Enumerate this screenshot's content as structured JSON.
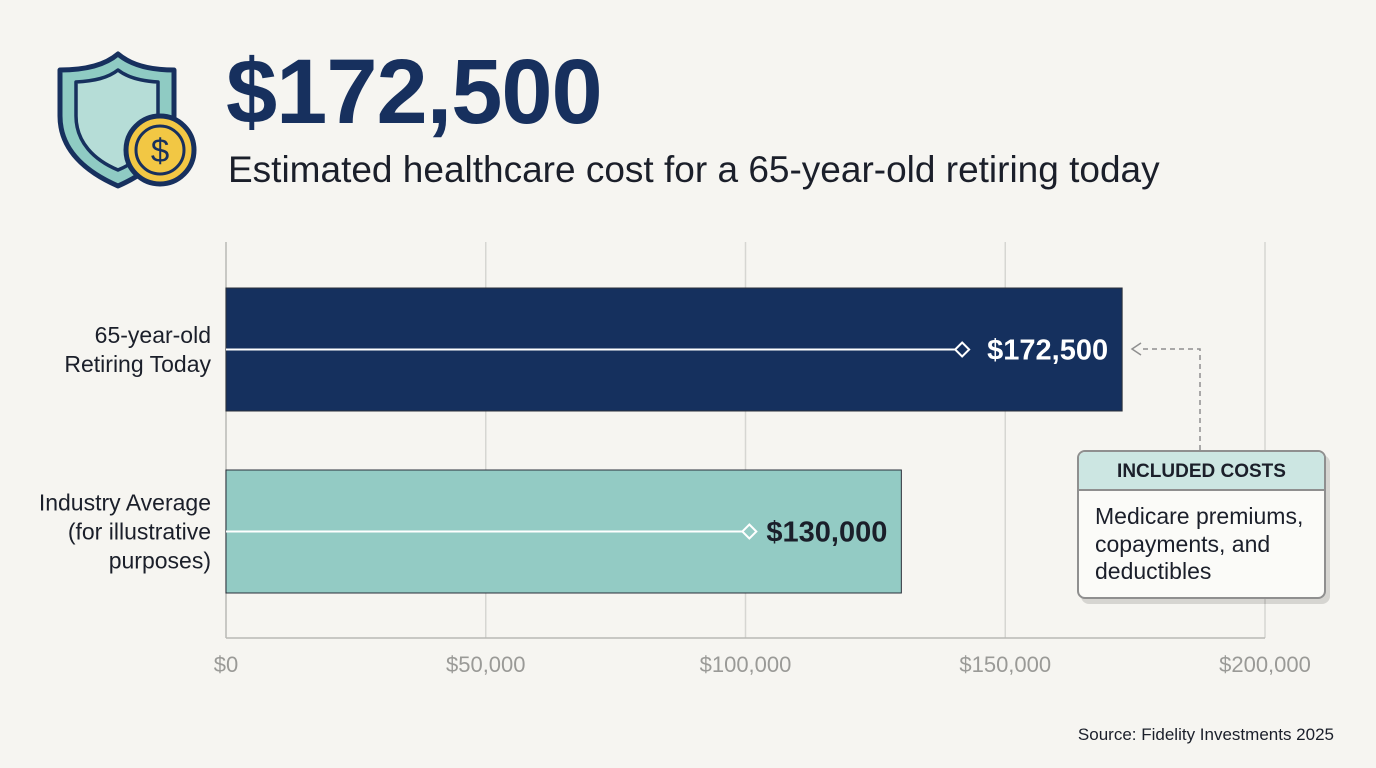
{
  "header": {
    "headline": "$172,500",
    "subheadline": "Estimated healthcare cost for a 65-year-old retiring today"
  },
  "chart_data": {
    "type": "bar",
    "orientation": "horizontal",
    "categories": [
      [
        "65-year-old",
        "Retiring Today"
      ],
      [
        "Industry Average",
        "(for illustrative",
        "purposes)"
      ]
    ],
    "values": [
      172500,
      130000
    ],
    "value_labels": [
      "$172,500",
      "$130,000"
    ],
    "bar_colors": [
      "#15305e",
      "#93cbc4"
    ],
    "value_label_colors": [
      "#ffffff",
      "#1b1f2a"
    ],
    "xlim": [
      0,
      200000
    ],
    "xticks": [
      0,
      50000,
      100000,
      150000,
      200000
    ],
    "xtick_labels": [
      "$0",
      "$50,000",
      "$100,000",
      "$150,000",
      "$200,000"
    ],
    "grid": true
  },
  "callout": {
    "title": "INCLUDED COSTS",
    "body": "Medicare premiums, copayments, and deductibles"
  },
  "source": "Source: Fidelity Investments 2025",
  "icons": {
    "logo": "shield-with-dollar-coin-icon",
    "coin": "dollar-coin-icon"
  },
  "colors": {
    "headline": "#17305e",
    "shield": "#8fcbc3",
    "coin": "#f2c744",
    "background": "#f6f5f1"
  }
}
